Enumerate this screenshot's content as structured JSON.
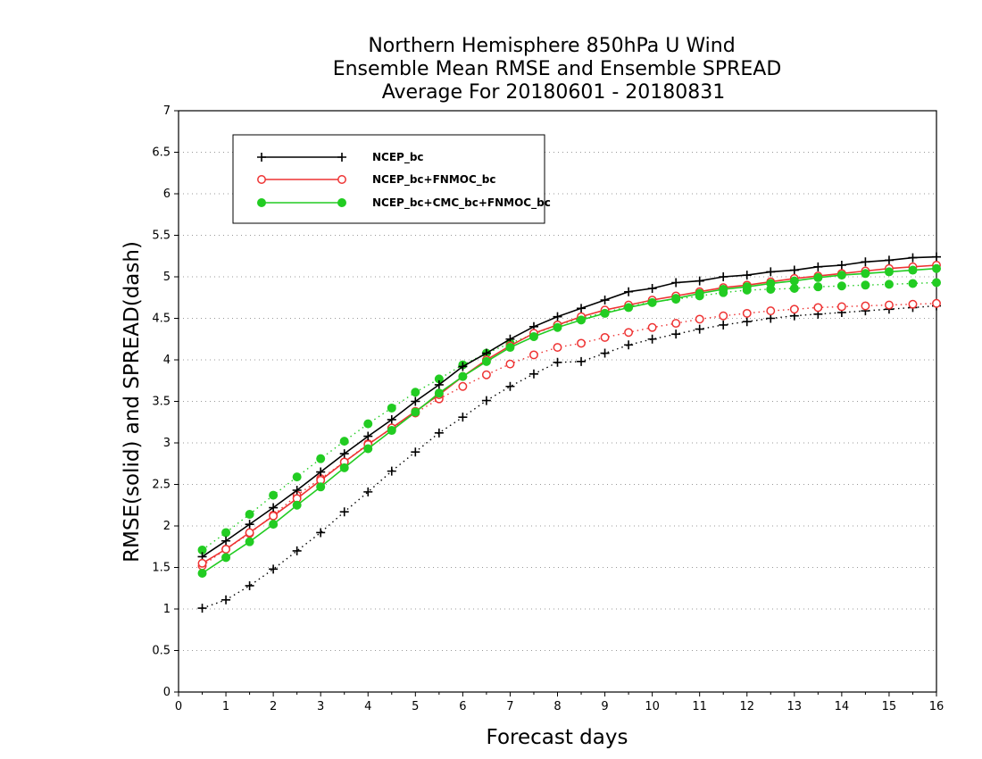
{
  "chart_data": {
    "type": "line",
    "title_lines": [
      "Northern Hemisphere 850hPa U Wind",
      "Ensemble Mean RMSE and Ensemble SPREAD",
      "Average For 20180601 - 20180831"
    ],
    "xlabel": "Forecast days",
    "ylabel": "RMSE(solid) and SPREAD(dash)",
    "xlim": [
      0,
      16
    ],
    "ylim": [
      0,
      7
    ],
    "x_ticks": [
      0,
      1,
      2,
      3,
      4,
      5,
      6,
      7,
      8,
      9,
      10,
      11,
      12,
      13,
      14,
      15,
      16
    ],
    "y_ticks": [
      0,
      0.5,
      1,
      1.5,
      2,
      2.5,
      3,
      3.5,
      4,
      4.5,
      5,
      5.5,
      6,
      6.5,
      7
    ],
    "grid": "horizontal-dotted",
    "legend_position": "top-left",
    "x": [
      0.5,
      1,
      1.5,
      2,
      2.5,
      3,
      3.5,
      4,
      4.5,
      5,
      5.5,
      6,
      6.5,
      7,
      7.5,
      8,
      8.5,
      9,
      9.5,
      10,
      10.5,
      11,
      11.5,
      12,
      12.5,
      13,
      13.5,
      14,
      14.5,
      15,
      15.5,
      16
    ],
    "series": [
      {
        "name": "NCEP_bc",
        "metric": "rmse",
        "color": "#000000",
        "marker": "plus",
        "values": [
          1.63,
          1.82,
          2.02,
          2.22,
          2.43,
          2.65,
          2.87,
          3.08,
          3.28,
          3.5,
          3.7,
          3.92,
          4.08,
          4.25,
          4.4,
          4.52,
          4.62,
          4.72,
          4.82,
          4.86,
          4.93,
          4.95,
          5.0,
          5.02,
          5.06,
          5.08,
          5.12,
          5.14,
          5.18,
          5.2,
          5.23,
          5.24
        ]
      },
      {
        "name": "NCEP_bc+FNMOC_bc",
        "metric": "rmse",
        "color": "#ee3333",
        "marker": "open-circle",
        "values": [
          1.55,
          1.72,
          1.92,
          2.12,
          2.33,
          2.55,
          2.77,
          2.98,
          3.18,
          3.38,
          3.58,
          3.8,
          4.0,
          4.17,
          4.32,
          4.42,
          4.52,
          4.6,
          4.66,
          4.72,
          4.77,
          4.82,
          4.87,
          4.9,
          4.94,
          4.98,
          5.01,
          5.04,
          5.07,
          5.1,
          5.12,
          5.14
        ]
      },
      {
        "name": "NCEP_bc+CMC_bc+FNMOC_bc",
        "metric": "rmse",
        "color": "#22cc22",
        "marker": "filled-circle",
        "values": [
          1.43,
          1.62,
          1.81,
          2.02,
          2.25,
          2.47,
          2.7,
          2.93,
          3.15,
          3.37,
          3.6,
          3.8,
          3.98,
          4.15,
          4.28,
          4.39,
          4.48,
          4.56,
          4.63,
          4.69,
          4.74,
          4.8,
          4.85,
          4.88,
          4.92,
          4.95,
          4.99,
          5.02,
          5.04,
          5.06,
          5.08,
          5.1
        ]
      },
      {
        "name": "NCEP_bc",
        "metric": "spread",
        "color": "#000000",
        "marker": "plus",
        "values": [
          1.01,
          1.11,
          1.28,
          1.48,
          1.7,
          1.92,
          2.17,
          2.41,
          2.66,
          2.89,
          3.12,
          3.31,
          3.51,
          3.68,
          3.83,
          3.97,
          3.98,
          4.08,
          4.18,
          4.25,
          4.31,
          4.37,
          4.42,
          4.46,
          4.5,
          4.53,
          4.55,
          4.57,
          4.59,
          4.61,
          4.63,
          4.65
        ]
      },
      {
        "name": "NCEP_bc+FNMOC_bc",
        "metric": "spread",
        "color": "#ee3333",
        "marker": "open-circle",
        "values": [
          1.52,
          1.72,
          1.91,
          2.13,
          2.37,
          2.57,
          2.77,
          2.99,
          3.17,
          3.36,
          3.53,
          3.68,
          3.82,
          3.95,
          4.06,
          4.15,
          4.2,
          4.27,
          4.33,
          4.39,
          4.44,
          4.49,
          4.53,
          4.56,
          4.59,
          4.61,
          4.63,
          4.64,
          4.65,
          4.66,
          4.67,
          4.68
        ]
      },
      {
        "name": "NCEP_bc+CMC_bc+FNMOC_bc",
        "metric": "spread",
        "color": "#22cc22",
        "marker": "filled-circle",
        "values": [
          1.71,
          1.92,
          2.14,
          2.37,
          2.59,
          2.81,
          3.02,
          3.23,
          3.42,
          3.61,
          3.77,
          3.94,
          4.08,
          4.2,
          4.31,
          4.42,
          4.5,
          4.57,
          4.64,
          4.7,
          4.73,
          4.77,
          4.81,
          4.84,
          4.85,
          4.86,
          4.88,
          4.89,
          4.9,
          4.91,
          4.92,
          4.93
        ]
      }
    ]
  }
}
